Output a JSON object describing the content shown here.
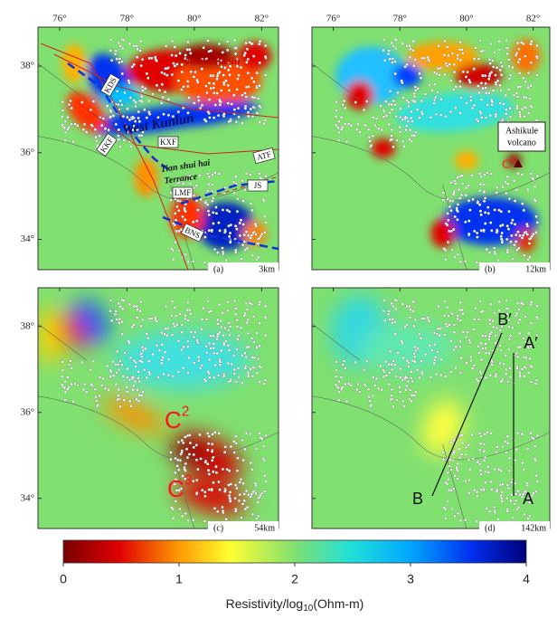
{
  "lon_ticks": [
    {
      "value": 76,
      "label": "76°"
    },
    {
      "value": 78,
      "label": "78°"
    },
    {
      "value": 80,
      "label": "80°"
    },
    {
      "value": 82,
      "label": "82°"
    }
  ],
  "lat_ticks": [
    {
      "value": 38,
      "label": "38°"
    },
    {
      "value": 36,
      "label": "36°"
    },
    {
      "value": 34,
      "label": "34°"
    }
  ],
  "panels": [
    {
      "label": "(a)",
      "depth": "3km",
      "annotations": [
        "Tarim Basin",
        "West Kunlun",
        "Tian shui hai",
        "Terrance"
      ],
      "faults": [
        "KDS",
        "KXF",
        "KKF",
        "LMF",
        "ATF",
        "JS",
        "BNS"
      ]
    },
    {
      "label": "(b)",
      "depth": "12km",
      "annotations": [
        "Ashikule",
        "volcano"
      ],
      "conductors": [
        {
          "letter": "C",
          "index": "1"
        }
      ]
    },
    {
      "label": "(c)",
      "depth": "54km",
      "conductors": [
        {
          "letter": "C",
          "index": "2"
        },
        {
          "letter": "C",
          "index": "3"
        }
      ]
    },
    {
      "label": "(d)",
      "depth": "142km",
      "profiles": [
        "B",
        "B′",
        "A′",
        "A"
      ]
    }
  ],
  "colorbar": {
    "lim": [
      0,
      4
    ],
    "ticks": [
      0,
      1,
      2,
      3,
      4
    ],
    "label": {
      "main": "Resistivity/log",
      "sub": "10",
      "unit": "(Ohm-m)"
    }
  }
}
